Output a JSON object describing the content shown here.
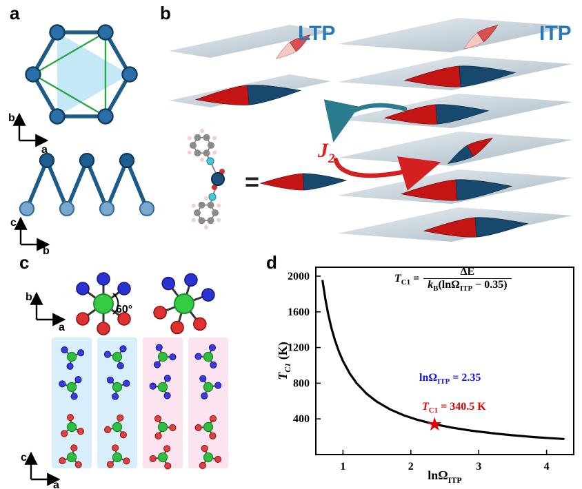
{
  "figure": {
    "panel_labels": {
      "a": "a",
      "b": "b",
      "c": "c",
      "d": "d"
    }
  },
  "panel_a": {
    "axes_top": {
      "vertical": "b",
      "horizontal": "a"
    },
    "axes_bottom": {
      "vertical": "c",
      "horizontal": "b"
    }
  },
  "panel_b": {
    "ltp_label": "LTP",
    "itp_label": "ITP",
    "j2": {
      "symbol": "J",
      "subscript": "2"
    },
    "equals": "="
  },
  "panel_c": {
    "angle_label": "60°",
    "axes_top": {
      "vertical": "b",
      "horizontal": "a"
    },
    "axes_bottom": {
      "vertical": "c",
      "horizontal": "a"
    }
  },
  "panel_d": {
    "star": "★",
    "formula": {
      "lhs": "T",
      "lhs_sub": "C1",
      "equals": "=",
      "numerator": "ΔE",
      "den_k": "k",
      "den_k_sub": "B",
      "den_mid": "(lnΩ",
      "den_sub": "ITP",
      "den_end": " − 0.35)"
    },
    "annotation_blue": {
      "main": "lnΩ",
      "sub": "ITP",
      "value": " = 2.35"
    },
    "annotation_red": {
      "main": "T",
      "sub": "C1",
      "value": " = 340.5 K"
    },
    "colors": {
      "annotation_blue": "#1414e6",
      "annotation_red": "#e60000",
      "curve": "#000000"
    }
  },
  "chart_data": {
    "type": "line",
    "title": "",
    "xlabel": "lnΩ_ITP",
    "ylabel": "T_C1 (K)",
    "xlabel_parts": {
      "main": "lnΩ",
      "sub": "ITP"
    },
    "ylabel_parts": {
      "main": "T",
      "sub": "C1",
      "unit": " (K)"
    },
    "xlim": [
      0.6,
      4.4
    ],
    "ylim": [
      0,
      2100
    ],
    "xticks": [
      1,
      2,
      3,
      4
    ],
    "yticks": [
      400,
      800,
      1200,
      1600,
      2000
    ],
    "grid": false,
    "legend": "none",
    "formula_text": "T_C1 = ΔE / (k_B (ln Ω_ITP − 0.35))",
    "curve_relation": "T_C1 = 681 / (lnΩ_ITP − 0.35)",
    "x": [
      0.7,
      0.74,
      0.78,
      0.83,
      0.88,
      0.94,
      1.0,
      1.1,
      1.2,
      1.35,
      1.5,
      1.7,
      1.9,
      2.1,
      2.35,
      2.6,
      2.9,
      3.2,
      3.5,
      3.8,
      4.05,
      4.25
    ],
    "y": [
      1946,
      1746,
      1584,
      1419,
      1285,
      1154,
      1048,
      908,
      801,
      681,
      592,
      504,
      439,
      389,
      340.5,
      303,
      267,
      239,
      216,
      197,
      184,
      175
    ],
    "marker": {
      "x": 2.35,
      "y": 340.5,
      "label_x": "lnΩ_ITP = 2.35",
      "label_y": "T_C1 = 340.5 K"
    }
  }
}
